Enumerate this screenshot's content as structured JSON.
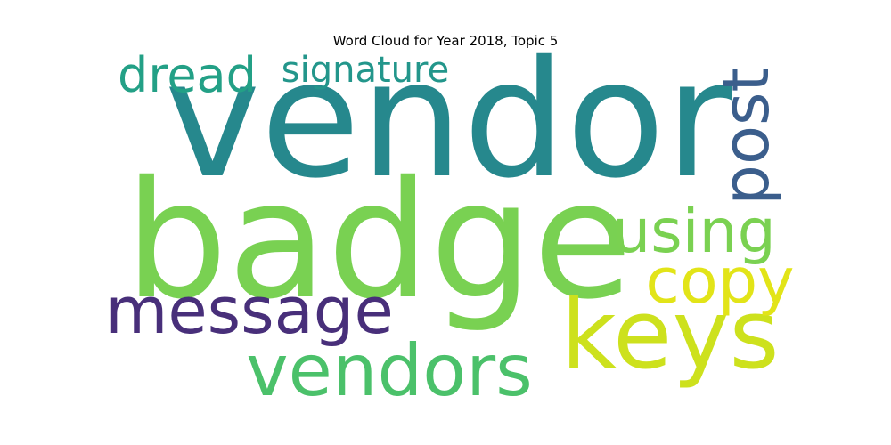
{
  "title": "Word Cloud for Year 2018, Topic 5",
  "words": [
    {
      "text": "vendor",
      "color": "#26888d"
    },
    {
      "text": "badge",
      "color": "#79d152"
    },
    {
      "text": "keys",
      "color": "#cde11d"
    },
    {
      "text": "vendors",
      "color": "#4bc16a"
    },
    {
      "text": "message",
      "color": "#482f7a"
    },
    {
      "text": "copy",
      "color": "#e2e418"
    },
    {
      "text": "using",
      "color": "#7ad151"
    },
    {
      "text": "post",
      "color": "#3b5e8c"
    },
    {
      "text": "dread",
      "color": "#23a086"
    },
    {
      "text": "signature",
      "color": "#23968b"
    }
  ]
}
